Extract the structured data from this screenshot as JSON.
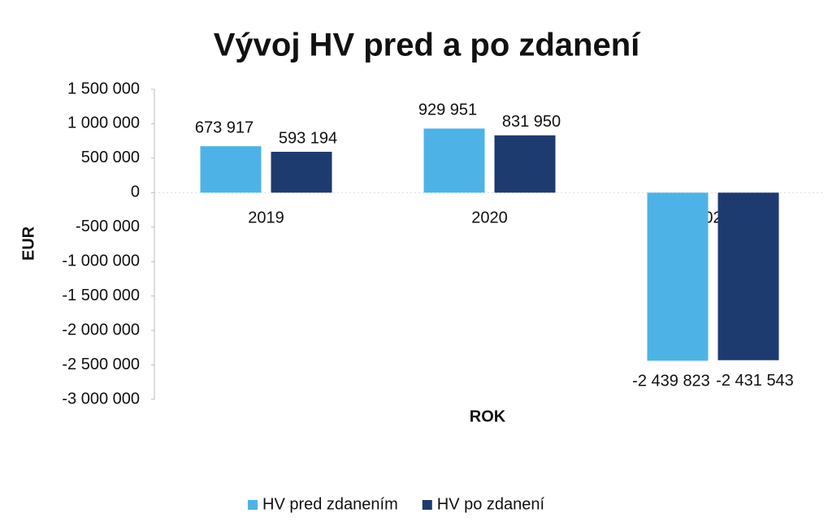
{
  "chart_data": {
    "type": "bar",
    "title": "Vývoj HV pred a po zdanení",
    "ylabel": "EUR",
    "xlabel": "ROK",
    "categories": [
      "2019",
      "2020",
      "2021"
    ],
    "series": [
      {
        "name": "HV pred zdanením",
        "color": "#4db3e6",
        "values": [
          673917,
          929951,
          -2439823
        ],
        "value_labels": [
          "673 917",
          "929 951",
          "-2 439 823"
        ]
      },
      {
        "name": "HV po zdanení",
        "color": "#1e3b70",
        "values": [
          593194,
          831950,
          -2431543
        ],
        "value_labels": [
          "593 194",
          "831 950",
          "-2 431 543"
        ]
      }
    ],
    "ylim": [
      -3000000,
      1500000
    ],
    "yticks": [
      {
        "value": 1500000,
        "label": "1 500 000"
      },
      {
        "value": 1000000,
        "label": "1 000 000"
      },
      {
        "value": 500000,
        "label": "500 000"
      },
      0,
      {
        "value": -500000,
        "label": "-500 000"
      },
      {
        "value": -1000000,
        "label": "-1 000 000"
      },
      {
        "value": -1500000,
        "label": "-1 500 000"
      },
      {
        "value": -2000000,
        "label": "-2 000 000"
      },
      {
        "value": -2500000,
        "label": "-2 500 000"
      },
      {
        "value": -3000000,
        "label": "-3 000 000"
      }
    ],
    "grid": false,
    "legend": "bottom"
  }
}
